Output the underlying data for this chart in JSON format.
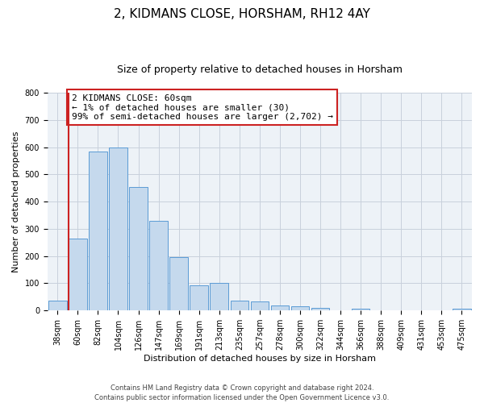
{
  "title": "2, KIDMANS CLOSE, HORSHAM, RH12 4AY",
  "subtitle": "Size of property relative to detached houses in Horsham",
  "xlabel": "Distribution of detached houses by size in Horsham",
  "ylabel": "Number of detached properties",
  "bar_labels": [
    "38sqm",
    "60sqm",
    "82sqm",
    "104sqm",
    "126sqm",
    "147sqm",
    "169sqm",
    "191sqm",
    "213sqm",
    "235sqm",
    "257sqm",
    "278sqm",
    "300sqm",
    "322sqm",
    "344sqm",
    "366sqm",
    "388sqm",
    "409sqm",
    "431sqm",
    "453sqm",
    "475sqm"
  ],
  "bar_values": [
    37,
    265,
    583,
    600,
    453,
    330,
    197,
    91,
    100,
    37,
    32,
    18,
    15,
    10,
    0,
    8,
    0,
    0,
    0,
    0,
    8
  ],
  "bar_color": "#c5d9ed",
  "bar_edge_color": "#5b9bd5",
  "highlight_bar_index": 1,
  "highlight_color": "#cc2222",
  "ylim": [
    0,
    800
  ],
  "yticks": [
    0,
    100,
    200,
    300,
    400,
    500,
    600,
    700,
    800
  ],
  "annotation_box_text": "2 KIDMANS CLOSE: 60sqm\n← 1% of detached houses are smaller (30)\n99% of semi-detached houses are larger (2,702) →",
  "annotation_box_color": "#cc2222",
  "footer_line1": "Contains HM Land Registry data © Crown copyright and database right 2024.",
  "footer_line2": "Contains public sector information licensed under the Open Government Licence v3.0.",
  "background_color": "#edf2f7",
  "grid_color": "#c8d0dc",
  "title_fontsize": 11,
  "subtitle_fontsize": 9,
  "axis_label_fontsize": 8,
  "tick_fontsize": 7,
  "annotation_fontsize": 8,
  "ylabel_fontsize": 8
}
